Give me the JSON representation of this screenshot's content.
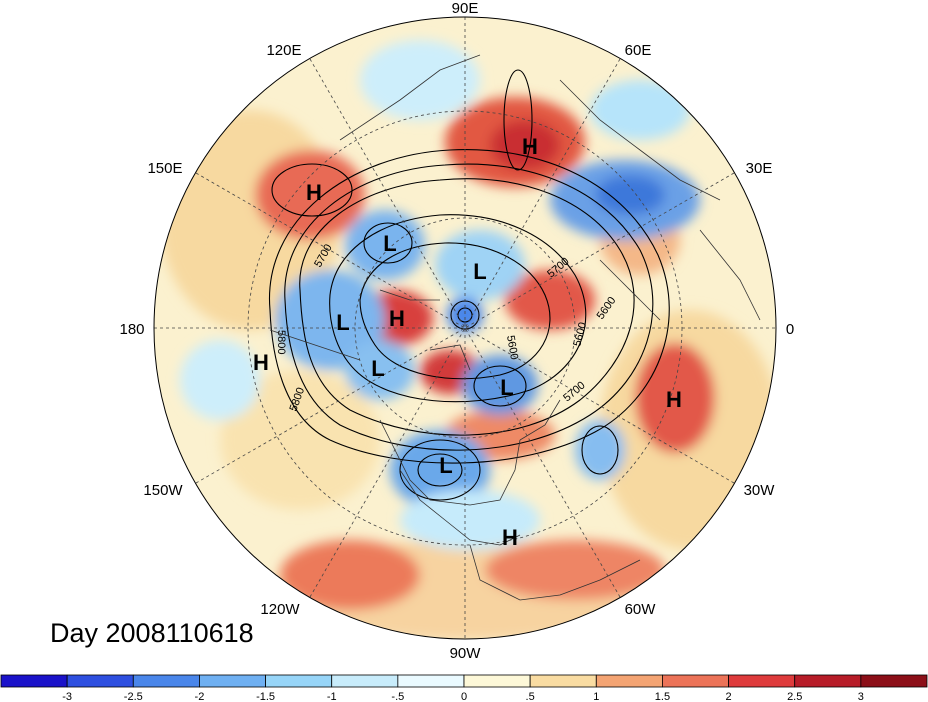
{
  "title": "Day 2008110618",
  "longitude_labels": [
    {
      "text": "90E",
      "lon": "90E"
    },
    {
      "text": "60E",
      "lon": "60E"
    },
    {
      "text": "30E",
      "lon": "30E"
    },
    {
      "text": "0",
      "lon": "0"
    },
    {
      "text": "30W",
      "lon": "30W"
    },
    {
      "text": "60W",
      "lon": "60W"
    },
    {
      "text": "90W",
      "lon": "90W"
    },
    {
      "text": "120W",
      "lon": "120W"
    },
    {
      "text": "150W",
      "lon": "150W"
    },
    {
      "text": "180",
      "lon": "180"
    },
    {
      "text": "150E",
      "lon": "150E"
    },
    {
      "text": "120E",
      "lon": "120E"
    }
  ],
  "pressure_centers": [
    {
      "type": "H",
      "region": "Siberia (60E)"
    },
    {
      "type": "H",
      "region": "East Asia (150E)"
    },
    {
      "type": "L",
      "region": "Northeast Siberia"
    },
    {
      "type": "L",
      "region": "Arctic Ocean"
    },
    {
      "type": "L",
      "region": "Bering Sea"
    },
    {
      "type": "H",
      "region": "Arctic / Beaufort"
    },
    {
      "type": "H",
      "region": "North Pacific (180)"
    },
    {
      "type": "L",
      "region": "Alaska"
    },
    {
      "type": "L",
      "region": "Baffin Bay"
    },
    {
      "type": "H",
      "region": "Eastern Atlantic (30W)"
    },
    {
      "type": "L",
      "region": "North America"
    },
    {
      "type": "H",
      "region": "Gulf of Mexico / Caribbean"
    }
  ],
  "contour_labels": [
    "5700",
    "5800",
    "5700",
    "5800",
    "5600",
    "5600",
    "5700",
    "5600"
  ],
  "colorbar": {
    "ticks": [
      "-3",
      "-2.5",
      "-2",
      "-1.5",
      "-1",
      "-.5",
      "0",
      ".5",
      "1",
      "1.5",
      "2",
      "2.5",
      "3"
    ],
    "colors": [
      "#1a12c9",
      "#2e4fe0",
      "#4a86ea",
      "#6fb0f2",
      "#97d5f8",
      "#c8ecfb",
      "#eafaff",
      "#fdf8d8",
      "#f9dca2",
      "#f4a473",
      "#ec7358",
      "#de3b3c",
      "#b71c28",
      "#8c0f18"
    ]
  }
}
